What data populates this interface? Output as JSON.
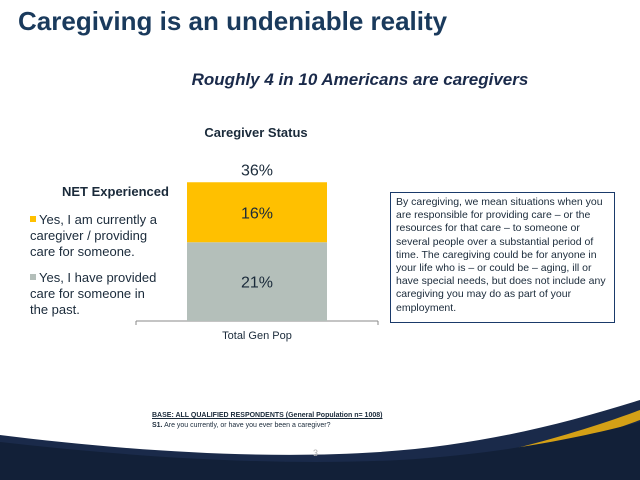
{
  "slide": {
    "title": "Caregiving is an undeniable reality",
    "subtitle": "Roughly 4 in 10 Americans are caregivers",
    "page_number": "3"
  },
  "legend": {
    "net_label": "NET Experienced",
    "items": [
      {
        "label": "Yes, I am currently a caregiver / providing care for someone.",
        "color": "#FFC000"
      },
      {
        "label": "Yes, I have provided care for someone in the past.",
        "color": "#B4BFBA"
      }
    ]
  },
  "definition": {
    "text": "By caregiving, we mean situations when you are responsible for providing care – or the resources for that care – to someone or several people over a substantial period of time.   The caregiving could be for anyone in your life who is – or could be – aging, ill or have special needs, but does not include any caregiving you may do as part of your employment."
  },
  "footnote": {
    "base": "BASE: ALL QUALIFIED RESPONDENTS (General Population n= 1008)",
    "question_label": "S1.",
    "question_text": " Are you currently, or have you ever been a caregiver?"
  },
  "chart_data": {
    "type": "bar",
    "stacked": true,
    "title": "Caregiver Status",
    "categories": [
      "Total Gen Pop"
    ],
    "series": [
      {
        "name": "Yes, I have provided care for someone in the past.",
        "values": [
          21
        ],
        "color": "#B4BFBA"
      },
      {
        "name": "Yes, I am currently a caregiver / providing care for someone.",
        "values": [
          16
        ],
        "color": "#FFC000"
      }
    ],
    "value_labels": [
      "21%",
      "16%"
    ],
    "total_label": "36%",
    "ylim": [
      0,
      40
    ],
    "grid": false,
    "legend": "left"
  }
}
